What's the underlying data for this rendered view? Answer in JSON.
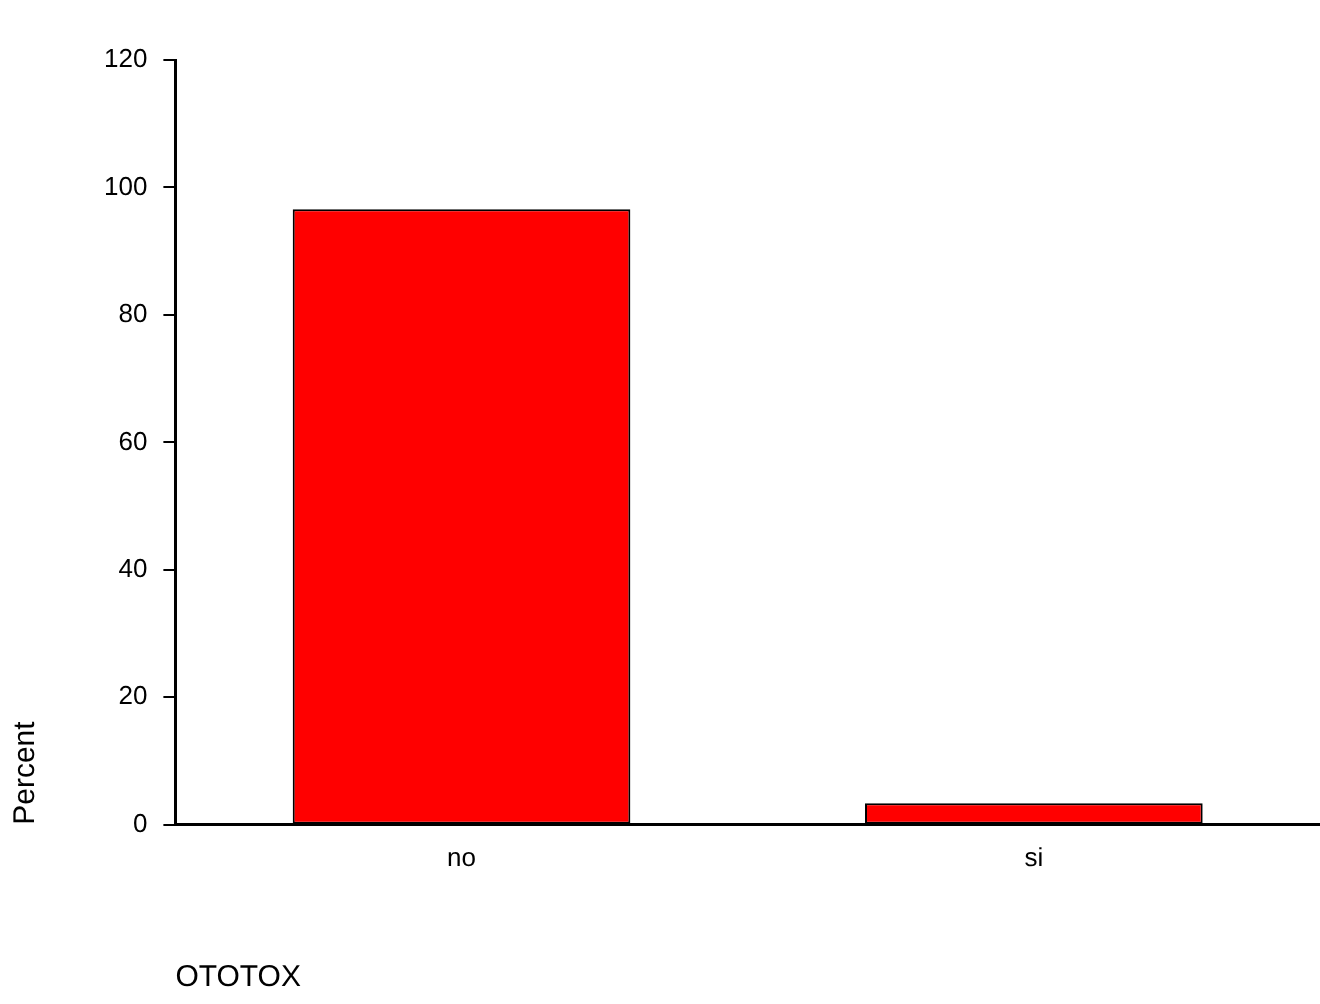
{
  "chart_data": {
    "type": "bar",
    "xlabel": "OTOTOX",
    "ylabel": "Percent",
    "categories": [
      "no",
      "si"
    ],
    "values": [
      96.6,
      3.4
    ],
    "color": "#ff0000",
    "ylim": [
      0,
      120
    ],
    "yticks": [
      0,
      20,
      40,
      60,
      80,
      100,
      120
    ],
    "grid": false,
    "legend": false
  }
}
